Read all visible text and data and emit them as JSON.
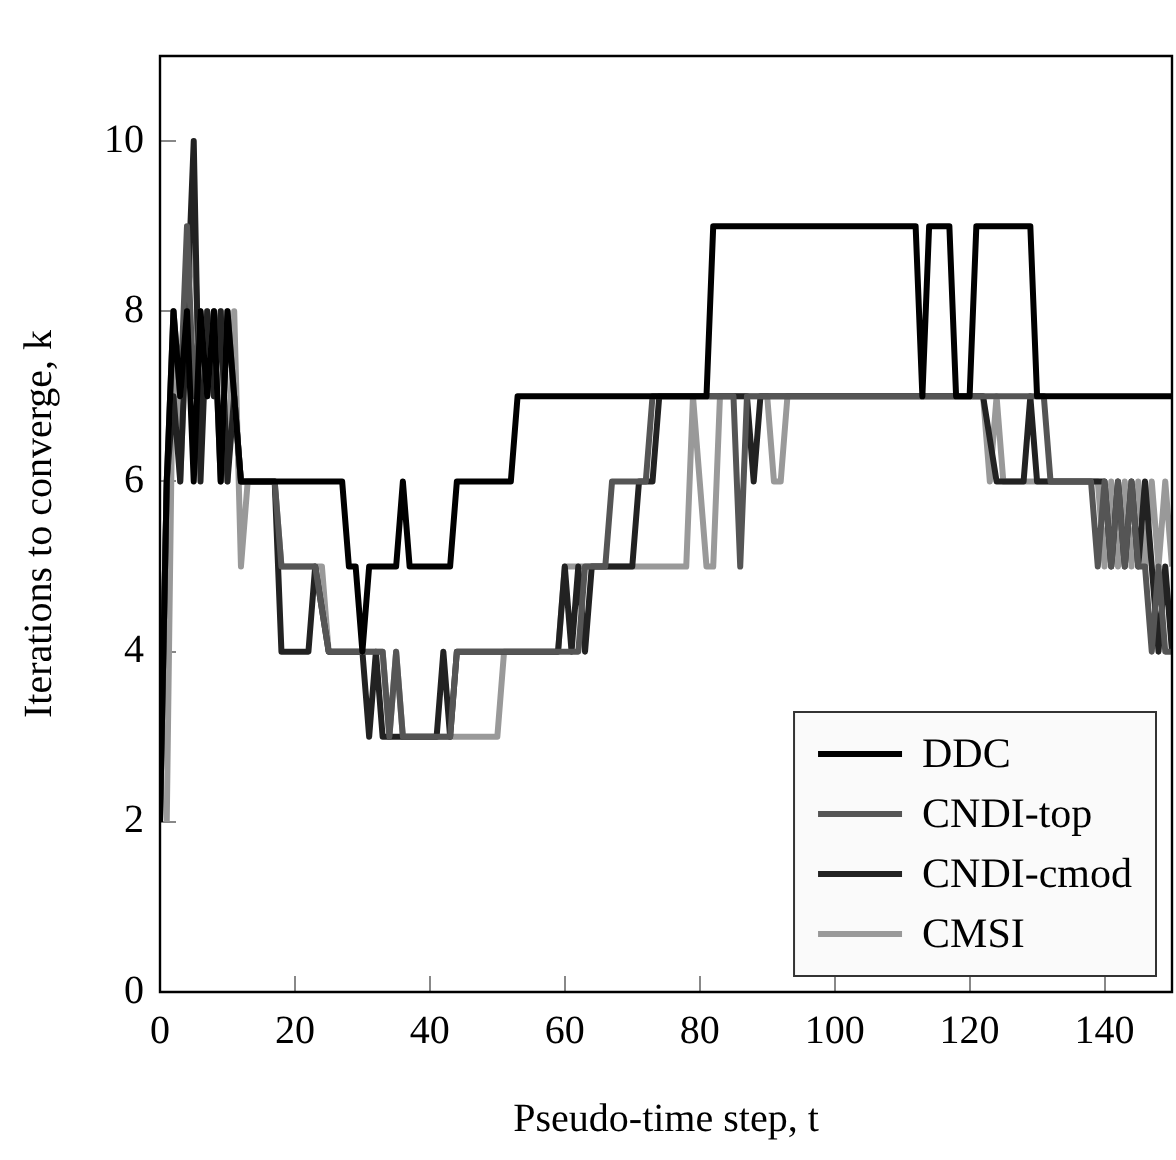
{
  "chart_data": {
    "type": "line",
    "xlabel": "Pseudo-time step, t",
    "ylabel": "Iterations to converge, k",
    "xlim": [
      0,
      150
    ],
    "xticks": [
      0,
      20,
      40,
      60,
      80,
      100,
      120,
      140
    ],
    "ylim": [
      0,
      11
    ],
    "yticks": [
      0,
      2,
      4,
      6,
      8,
      10
    ],
    "grid": false,
    "legend": "bottom right",
    "marker": "none",
    "line_style": "solid",
    "series": [
      {
        "name": "DDC",
        "color": "#000000",
        "x": [
          0,
          1,
          2,
          3,
          4,
          5,
          6,
          7,
          8,
          9,
          10,
          11,
          12,
          27,
          28,
          29,
          30,
          31,
          35,
          36,
          37,
          43,
          44,
          52,
          53,
          81,
          82,
          111,
          112,
          113,
          114,
          117,
          118,
          120,
          121,
          128,
          129,
          130,
          150
        ],
        "values": [
          2,
          6,
          8,
          7,
          8,
          6,
          8,
          7,
          8,
          6,
          8,
          7,
          6,
          6,
          5,
          5,
          4,
          5,
          5,
          6,
          5,
          5,
          6,
          6,
          7,
          7,
          9,
          9,
          9,
          7,
          9,
          9,
          7,
          7,
          9,
          9,
          9,
          7,
          7
        ]
      },
      {
        "name": "CNDI-top",
        "color": "#555555",
        "x": [
          0,
          1,
          2,
          3,
          4,
          5,
          6,
          7,
          8,
          9,
          10,
          11,
          12,
          17,
          18,
          22,
          23,
          25,
          33,
          34,
          35,
          36,
          43,
          44,
          62,
          63,
          66,
          67,
          72,
          73,
          85,
          86,
          87,
          131,
          132,
          138,
          139,
          140,
          141,
          142,
          143,
          144,
          145,
          146,
          147,
          148,
          149,
          150
        ],
        "values": [
          2,
          6,
          8,
          7,
          9,
          7,
          8,
          7,
          8,
          6,
          8,
          7,
          6,
          6,
          5,
          5,
          5,
          4,
          4,
          3,
          4,
          3,
          3,
          4,
          4,
          5,
          5,
          6,
          6,
          7,
          7,
          5,
          7,
          7,
          6,
          6,
          5,
          6,
          5,
          6,
          5,
          6,
          5,
          5,
          4,
          5,
          4,
          4
        ]
      },
      {
        "name": "CNDI-cmod",
        "color": "#222222",
        "x": [
          0,
          1,
          2,
          3,
          4,
          5,
          6,
          7,
          8,
          9,
          10,
          11,
          12,
          17,
          18,
          22,
          23,
          25,
          30,
          31,
          32,
          33,
          34,
          41,
          42,
          43,
          44,
          45,
          59,
          60,
          61,
          62,
          63,
          64,
          70,
          71,
          73,
          74,
          87,
          88,
          89,
          122,
          124,
          128,
          129,
          130,
          140,
          141,
          142,
          143,
          144,
          145,
          146,
          147,
          148,
          149,
          150
        ],
        "values": [
          2,
          6,
          7,
          6,
          8,
          10,
          6,
          8,
          7,
          8,
          6,
          7,
          6,
          6,
          4,
          4,
          5,
          4,
          4,
          3,
          4,
          3,
          3,
          3,
          4,
          3,
          4,
          4,
          4,
          5,
          4,
          5,
          4,
          5,
          5,
          6,
          6,
          7,
          7,
          6,
          7,
          7,
          6,
          6,
          7,
          6,
          6,
          5,
          6,
          5,
          6,
          5,
          6,
          5,
          4,
          5,
          4
        ]
      },
      {
        "name": "CMSI",
        "color": "#999999",
        "x": [
          1,
          2,
          3,
          4,
          5,
          6,
          7,
          8,
          9,
          10,
          11,
          12,
          13,
          17,
          18,
          24,
          25,
          33,
          34,
          35,
          36,
          50,
          51,
          59,
          60,
          78,
          79,
          80,
          81,
          82,
          83,
          90,
          91,
          92,
          93,
          122,
          123,
          124,
          125,
          126,
          139,
          140,
          141,
          142,
          143,
          144,
          145,
          146,
          147,
          148,
          149,
          150
        ],
        "values": [
          2,
          8,
          6,
          8,
          9,
          7,
          8,
          7,
          8,
          6,
          8,
          5,
          6,
          6,
          5,
          5,
          4,
          4,
          3,
          4,
          3,
          3,
          4,
          4,
          5,
          5,
          7,
          6,
          5,
          5,
          7,
          7,
          6,
          6,
          7,
          7,
          6,
          7,
          6,
          6,
          6,
          5,
          6,
          5,
          6,
          5,
          6,
          5,
          6,
          5,
          6,
          5
        ]
      }
    ]
  }
}
